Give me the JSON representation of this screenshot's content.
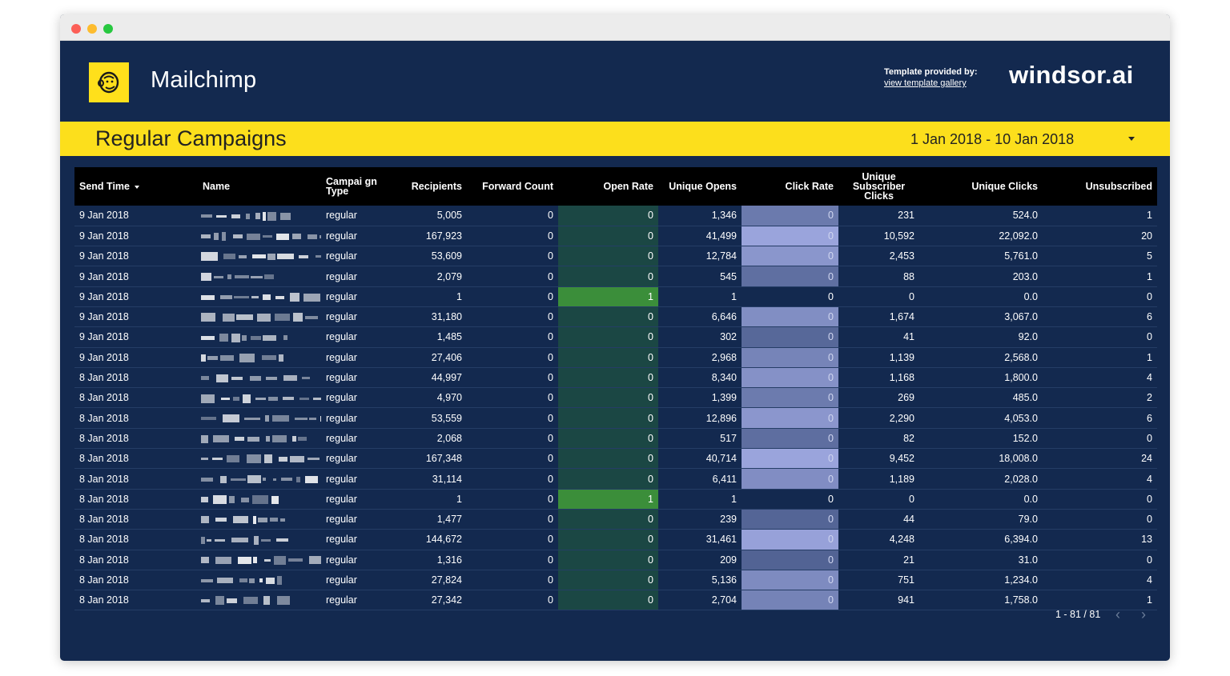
{
  "header": {
    "app_title": "Mailchimp",
    "provided_label": "Template provided by:",
    "gallery_link": "view template gallery",
    "brand": "windsor.ai",
    "logo_icon": "mailchimp-monkey-icon"
  },
  "banner": {
    "title": "Regular Campaigns",
    "date_range": "1 Jan 2018 - 10 Jan 2018"
  },
  "table": {
    "headers": {
      "send_time": "Send Time",
      "name": "Name",
      "campaign_type": "Campai gn Type",
      "recipients": "Recipients",
      "forward_count": "Forward Count",
      "open_rate": "Open Rate",
      "unique_opens": "Unique Opens",
      "click_rate": "Click Rate",
      "unique_subscriber_clicks": "Unique Subscriber Clicks",
      "unique_clicks": "Unique Clicks",
      "unsubscribed": "Unsubscribed"
    },
    "rows": [
      {
        "send_time": "9 Jan 2018",
        "type": "regular",
        "recipients": "5,005",
        "forward_count": "0",
        "open_rate": "0",
        "unique_opens": "1,346",
        "click_rate": "0",
        "unique_subscriber_clicks": "231",
        "unique_clicks": "524.0",
        "unsubscribed": "1"
      },
      {
        "send_time": "9 Jan 2018",
        "type": "regular",
        "recipients": "167,923",
        "forward_count": "0",
        "open_rate": "0",
        "unique_opens": "41,499",
        "click_rate": "0",
        "unique_subscriber_clicks": "10,592",
        "unique_clicks": "22,092.0",
        "unsubscribed": "20"
      },
      {
        "send_time": "9 Jan 2018",
        "type": "regular",
        "recipients": "53,609",
        "forward_count": "0",
        "open_rate": "0",
        "unique_opens": "12,784",
        "click_rate": "0",
        "unique_subscriber_clicks": "2,453",
        "unique_clicks": "5,761.0",
        "unsubscribed": "5"
      },
      {
        "send_time": "9 Jan 2018",
        "type": "regular",
        "recipients": "2,079",
        "forward_count": "0",
        "open_rate": "0",
        "unique_opens": "545",
        "click_rate": "0",
        "unique_subscriber_clicks": "88",
        "unique_clicks": "203.0",
        "unsubscribed": "1"
      },
      {
        "send_time": "9 Jan 2018",
        "type": "regular",
        "recipients": "1",
        "forward_count": "0",
        "open_rate": "1",
        "unique_opens": "1",
        "click_rate": "0",
        "unique_subscriber_clicks": "0",
        "unique_clicks": "0.0",
        "unsubscribed": "0"
      },
      {
        "send_time": "9 Jan 2018",
        "type": "regular",
        "recipients": "31,180",
        "forward_count": "0",
        "open_rate": "0",
        "unique_opens": "6,646",
        "click_rate": "0",
        "unique_subscriber_clicks": "1,674",
        "unique_clicks": "3,067.0",
        "unsubscribed": "6"
      },
      {
        "send_time": "9 Jan 2018",
        "type": "regular",
        "recipients": "1,485",
        "forward_count": "0",
        "open_rate": "0",
        "unique_opens": "302",
        "click_rate": "0",
        "unique_subscriber_clicks": "41",
        "unique_clicks": "92.0",
        "unsubscribed": "0"
      },
      {
        "send_time": "9 Jan 2018",
        "type": "regular",
        "recipients": "27,406",
        "forward_count": "0",
        "open_rate": "0",
        "unique_opens": "2,968",
        "click_rate": "0",
        "unique_subscriber_clicks": "1,139",
        "unique_clicks": "2,568.0",
        "unsubscribed": "1"
      },
      {
        "send_time": "8 Jan 2018",
        "type": "regular",
        "recipients": "44,997",
        "forward_count": "0",
        "open_rate": "0",
        "unique_opens": "8,340",
        "click_rate": "0",
        "unique_subscriber_clicks": "1,168",
        "unique_clicks": "1,800.0",
        "unsubscribed": "4"
      },
      {
        "send_time": "8 Jan 2018",
        "type": "regular",
        "recipients": "4,970",
        "forward_count": "0",
        "open_rate": "0",
        "unique_opens": "1,399",
        "click_rate": "0",
        "unique_subscriber_clicks": "269",
        "unique_clicks": "485.0",
        "unsubscribed": "2"
      },
      {
        "send_time": "8 Jan 2018",
        "type": "regular",
        "recipients": "53,559",
        "forward_count": "0",
        "open_rate": "0",
        "unique_opens": "12,896",
        "click_rate": "0",
        "unique_subscriber_clicks": "2,290",
        "unique_clicks": "4,053.0",
        "unsubscribed": "6"
      },
      {
        "send_time": "8 Jan 2018",
        "type": "regular",
        "recipients": "2,068",
        "forward_count": "0",
        "open_rate": "0",
        "unique_opens": "517",
        "click_rate": "0",
        "unique_subscriber_clicks": "82",
        "unique_clicks": "152.0",
        "unsubscribed": "0"
      },
      {
        "send_time": "8 Jan 2018",
        "type": "regular",
        "recipients": "167,348",
        "forward_count": "0",
        "open_rate": "0",
        "unique_opens": "40,714",
        "click_rate": "0",
        "unique_subscriber_clicks": "9,452",
        "unique_clicks": "18,008.0",
        "unsubscribed": "24"
      },
      {
        "send_time": "8 Jan 2018",
        "type": "regular",
        "recipients": "31,114",
        "forward_count": "0",
        "open_rate": "0",
        "unique_opens": "6,411",
        "click_rate": "0",
        "unique_subscriber_clicks": "1,189",
        "unique_clicks": "2,028.0",
        "unsubscribed": "4"
      },
      {
        "send_time": "8 Jan 2018",
        "type": "regular",
        "recipients": "1",
        "forward_count": "0",
        "open_rate": "1",
        "unique_opens": "1",
        "click_rate": "0",
        "unique_subscriber_clicks": "0",
        "unique_clicks": "0.0",
        "unsubscribed": "0"
      },
      {
        "send_time": "8 Jan 2018",
        "type": "regular",
        "recipients": "1,477",
        "forward_count": "0",
        "open_rate": "0",
        "unique_opens": "239",
        "click_rate": "0",
        "unique_subscriber_clicks": "44",
        "unique_clicks": "79.0",
        "unsubscribed": "0"
      },
      {
        "send_time": "8 Jan 2018",
        "type": "regular",
        "recipients": "144,672",
        "forward_count": "0",
        "open_rate": "0",
        "unique_opens": "31,461",
        "click_rate": "0",
        "unique_subscriber_clicks": "4,248",
        "unique_clicks": "6,394.0",
        "unsubscribed": "13"
      },
      {
        "send_time": "8 Jan 2018",
        "type": "regular",
        "recipients": "1,316",
        "forward_count": "0",
        "open_rate": "0",
        "unique_opens": "209",
        "click_rate": "0",
        "unique_subscriber_clicks": "21",
        "unique_clicks": "31.0",
        "unsubscribed": "0"
      },
      {
        "send_time": "8 Jan 2018",
        "type": "regular",
        "recipients": "27,824",
        "forward_count": "0",
        "open_rate": "0",
        "unique_opens": "5,136",
        "click_rate": "0",
        "unique_subscriber_clicks": "751",
        "unique_clicks": "1,234.0",
        "unsubscribed": "4"
      },
      {
        "send_time": "8 Jan 2018",
        "type": "regular",
        "recipients": "27,342",
        "forward_count": "0",
        "open_rate": "0",
        "unique_opens": "2,704",
        "click_rate": "0",
        "unique_subscriber_clicks": "941",
        "unique_clicks": "1,758.0",
        "unsubscribed": "1"
      }
    ]
  },
  "pagination": {
    "label": "1 - 81 / 81"
  },
  "colors": {
    "background": "#13294f",
    "banner": "#fcdf1c",
    "logo": "#ffe01b",
    "open_rate_zero": "#1b4744",
    "open_rate_high": "#3b8e3a",
    "click_rate_scale_low": "#4a5c8c",
    "click_rate_scale_high": "#9aa4dc"
  }
}
